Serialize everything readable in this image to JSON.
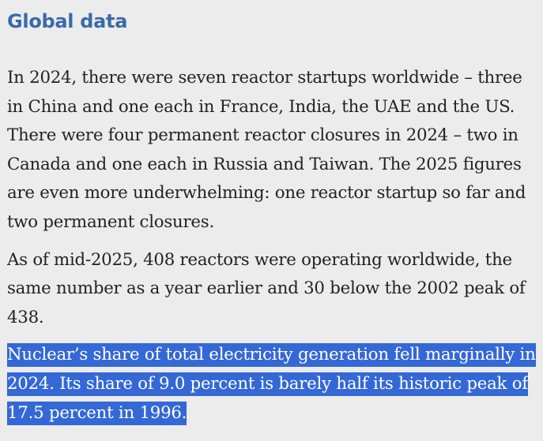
{
  "section": {
    "heading": "Global data"
  },
  "paragraphs": {
    "p1": "In 2024, there were seven reactor startups worldwide – three in China and one each in France, India, the UAE and the US. There were four permanent reactor closures in 2024 – two in Canada and one each in Russia and Taiwan. The 2025 figures are even more underwhelming: one reactor startup so far and two permanent closures.",
    "p2": "As of mid-2025, 408 reactors were operating worldwide, the same number as a year earlier and 30 below the 2002 peak of 438.",
    "p3": "Nuclear’s share of total electricity generation fell marginally in 2024. Its share of 9.0 percent is barely half its historic peak of 17.5 percent in 1996."
  },
  "colors": {
    "heading": "#3a6aa9",
    "body_text": "#222222",
    "background": "#ececec",
    "selection_highlight": "#3468d6"
  }
}
